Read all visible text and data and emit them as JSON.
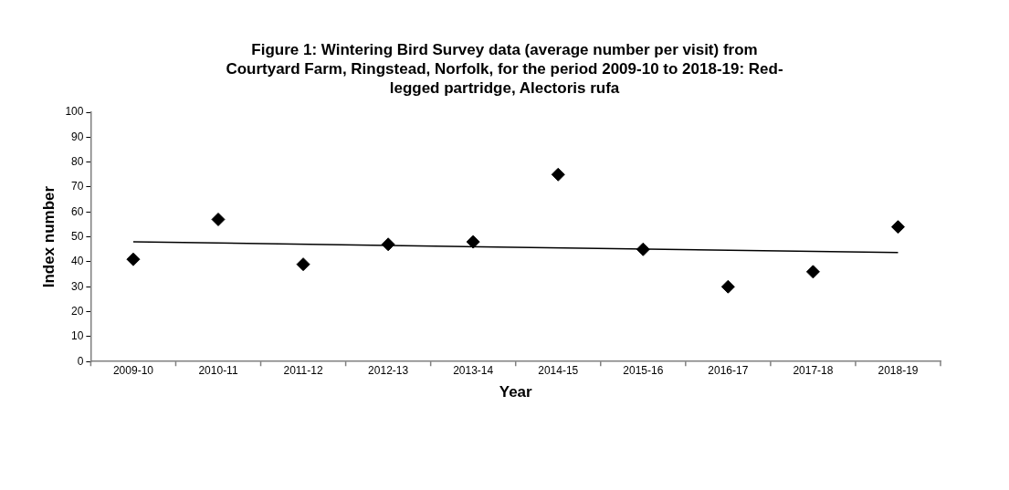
{
  "chart_data": {
    "type": "scatter",
    "title": "Figure 1: Wintering Bird Survey data (average number per visit) from Courtyard Farm, Ringstead, Norfolk, for the period 2009-10 to 2018-19: Red-legged partridge, Alectoris rufa",
    "xlabel": "Year",
    "ylabel": "Index number",
    "categories": [
      "2009-10",
      "2010-11",
      "2011-12",
      "2012-13",
      "2013-14",
      "2014-15",
      "2015-16",
      "2016-17",
      "2017-18",
      "2018-19"
    ],
    "series": [
      {
        "type": "scatter",
        "color": "#000000",
        "marker": "diamond",
        "values": [
          41,
          57,
          39,
          47,
          48,
          75,
          45,
          30,
          36,
          54
        ]
      },
      {
        "type": "line",
        "color": "#000000",
        "marker": "none",
        "values": [
          48,
          null,
          null,
          null,
          null,
          null,
          null,
          null,
          null,
          43.7
        ]
      }
    ],
    "ylim": [
      0,
      100
    ],
    "yticks": [
      0,
      10,
      20,
      30,
      40,
      50,
      60,
      70,
      80,
      90,
      100
    ],
    "grid": false,
    "legend": false,
    "line_style": "solid"
  }
}
